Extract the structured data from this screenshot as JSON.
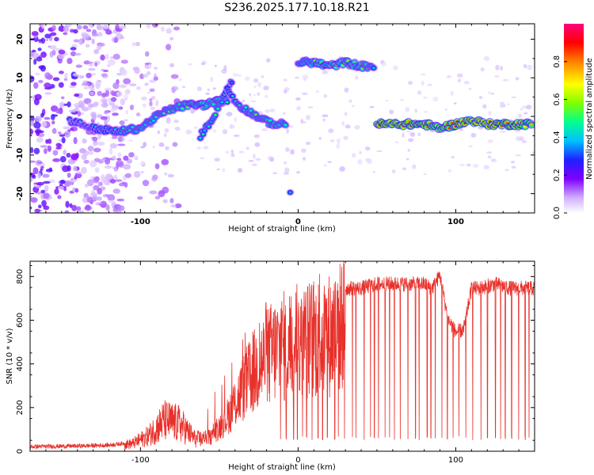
{
  "title": "S236.2025.177.10.18.R21",
  "colors": {
    "snr_line": "#e8302a",
    "frame": "#000000"
  },
  "chart_data": [
    {
      "type": "heatmap",
      "xlabel": "Height of straight line (km)",
      "ylabel": "Frequency (Hz)",
      "xlim": [
        -170,
        150
      ],
      "ylim": [
        -25,
        24
      ],
      "xticks": [
        -100,
        0,
        100
      ],
      "yticks": [
        -20,
        -10,
        0,
        10,
        20
      ],
      "colorbar": {
        "label": "Normalized spectral amplitude",
        "range": [
          0,
          1
        ],
        "ticks": [
          "0.0",
          "0.2",
          "0.4",
          "0.6",
          "0.8"
        ],
        "colormap": [
          "#ffffff",
          "#d0b0ff",
          "#8000ff",
          "#2020ff",
          "#00c0ff",
          "#00ff90",
          "#80ff00",
          "#ffff00",
          "#ff8000",
          "#ff0000",
          "#ff0080"
        ]
      },
      "ridges": [
        {
          "x": [
            -145,
            -130,
            -115,
            -100,
            -90,
            -80,
            -70,
            -60,
            -50,
            -45
          ],
          "y": [
            -1,
            -3,
            -4,
            -3,
            0,
            2,
            3,
            3,
            4,
            4
          ],
          "amplitude": [
            0.35,
            0.4,
            0.45,
            0.5,
            0.5,
            0.5,
            0.55,
            0.55,
            0.55,
            0.45
          ]
        },
        {
          "x": [
            -62,
            -55,
            -50,
            -45,
            -42
          ],
          "y": [
            -5,
            -1,
            3,
            7,
            9
          ],
          "amplitude": [
            0.45,
            0.45,
            0.5,
            0.4,
            0.35
          ]
        },
        {
          "x": [
            -45,
            -38,
            -30,
            -22,
            -15,
            -8
          ],
          "y": [
            7,
            3,
            1,
            -1,
            -2,
            -2
          ],
          "amplitude": [
            0.4,
            0.45,
            0.5,
            0.5,
            0.55,
            0.5
          ]
        },
        {
          "x": [
            -5
          ],
          "y": [
            -20
          ],
          "amplitude": [
            0.4
          ]
        },
        {
          "x": [
            0,
            10,
            20,
            30,
            40,
            48
          ],
          "y": [
            14,
            14,
            13,
            14,
            13,
            13
          ],
          "amplitude": [
            0.45,
            0.55,
            0.6,
            0.55,
            0.55,
            0.45
          ]
        },
        {
          "x": [
            50,
            60,
            70,
            80,
            90,
            100,
            110,
            120,
            130,
            140,
            148
          ],
          "y": [
            -2,
            -2,
            -2,
            -2,
            -3,
            -2,
            -1,
            -2,
            -2,
            -2,
            -2
          ],
          "amplitude": [
            0.85,
            0.9,
            0.85,
            0.8,
            0.75,
            0.85,
            0.9,
            0.9,
            0.85,
            0.8,
            0.7
          ]
        }
      ],
      "noise_region_x": [
        -170,
        -110
      ]
    },
    {
      "type": "line",
      "xlabel": "Height of straight line (km)",
      "ylabel": "SNR (10 * v/v)",
      "xlim": [
        -170,
        150
      ],
      "ylim": [
        0,
        870
      ],
      "xticks": [
        -100,
        0,
        100
      ],
      "yticks": [
        0,
        200,
        400,
        600,
        800
      ],
      "series": [
        {
          "envelope_x": [
            -170,
            -140,
            -120,
            -105,
            -95,
            -85,
            -75,
            -65,
            -55,
            -45,
            -35,
            -25,
            -15,
            -5,
            5,
            15,
            25,
            30,
            40,
            50,
            60,
            70,
            80,
            85,
            90,
            95,
            100,
            105,
            110,
            115,
            125,
            135,
            150
          ],
          "envelope_y": [
            25,
            28,
            32,
            45,
            90,
            180,
            160,
            70,
            80,
            190,
            350,
            480,
            560,
            600,
            620,
            640,
            660,
            760,
            760,
            780,
            780,
            780,
            780,
            760,
            820,
            620,
            560,
            570,
            760,
            760,
            780,
            760,
            760
          ],
          "dropout_count": 60,
          "dropout_floor": 50
        }
      ]
    }
  ]
}
